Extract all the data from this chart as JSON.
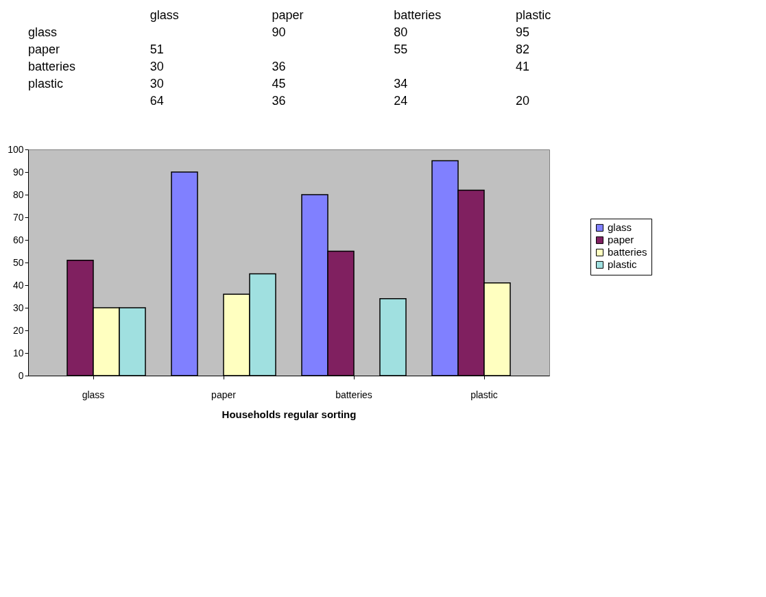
{
  "chart_data": {
    "type": "bar",
    "xlabel": "Households regular sorting",
    "categories": [
      "glass",
      "paper",
      "batteries",
      "plastic"
    ],
    "series": [
      {
        "name": "glass",
        "color": "#8080ff",
        "values": [
          null,
          90,
          80,
          95
        ]
      },
      {
        "name": "paper",
        "color": "#802060",
        "values": [
          51,
          null,
          55,
          82
        ]
      },
      {
        "name": "batteries",
        "color": "#ffffc0",
        "values": [
          30,
          36,
          null,
          41
        ]
      },
      {
        "name": "plastic",
        "color": "#a0e0e0",
        "values": [
          30,
          45,
          34,
          null
        ]
      }
    ],
    "ylim": [
      0,
      100
    ],
    "yticks": [
      0,
      10,
      20,
      30,
      40,
      50,
      60,
      70,
      80,
      90,
      100
    ],
    "grid": false,
    "legend": "right",
    "annotations": [
      "90",
      "80",
      "95",
      "51",
      "55",
      "82",
      "30",
      "36",
      "41",
      "30",
      "45",
      "34",
      "64",
      "36",
      "24",
      "20"
    ]
  }
}
